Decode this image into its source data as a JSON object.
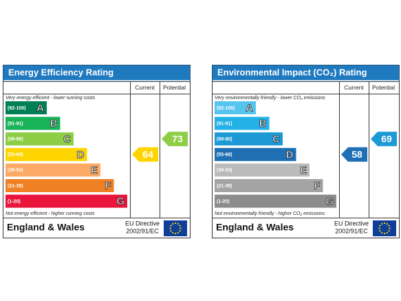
{
  "panels": [
    {
      "title": "Energy Efficiency Rating",
      "columns": [
        "Current",
        "Potential"
      ],
      "top_note": "Very energy efficient - lower running costs",
      "bottom_note": "Not energy efficient - higher running costs",
      "bands": [
        {
          "range": "(92-100)",
          "letter": "A",
          "color": "#008054"
        },
        {
          "range": "(81-91)",
          "letter": "B",
          "color": "#19b459"
        },
        {
          "range": "(69-80)",
          "letter": "C",
          "color": "#8dce46"
        },
        {
          "range": "(55-68)",
          "letter": "D",
          "color": "#ffd500"
        },
        {
          "range": "(39-54)",
          "letter": "E",
          "color": "#fcaa65"
        },
        {
          "range": "(21-38)",
          "letter": "F",
          "color": "#ef8023"
        },
        {
          "range": "(1-20)",
          "letter": "G",
          "color": "#e9153b"
        }
      ],
      "current": 64,
      "potential": 73,
      "footer": {
        "region": "England & Wales",
        "directive": [
          "EU Directive",
          "2002/91/EC"
        ]
      }
    },
    {
      "title": "Environmental Impact (CO₂) Rating",
      "columns": [
        "Current",
        "Potential"
      ],
      "top_note": "Very environmentally friendly - lower CO₂ emissions",
      "bottom_note": "Not environmentally friendly - higher CO₂ emissions",
      "bands": [
        {
          "range": "(92-100)",
          "letter": "A",
          "color": "#55c5f0"
        },
        {
          "range": "(81-91)",
          "letter": "B",
          "color": "#22b2e8"
        },
        {
          "range": "(69-80)",
          "letter": "C",
          "color": "#1d9ad6"
        },
        {
          "range": "(55-68)",
          "letter": "D",
          "color": "#1e6fb4"
        },
        {
          "range": "(39-54)",
          "letter": "E",
          "color": "#bbbbbb"
        },
        {
          "range": "(21-38)",
          "letter": "F",
          "color": "#a4a4a4"
        },
        {
          "range": "(1-20)",
          "letter": "G",
          "color": "#8c8c8c"
        }
      ],
      "current": 58,
      "potential": 69,
      "footer": {
        "region": "England & Wales",
        "directive": [
          "EU Directive",
          "2002/91/EC"
        ]
      }
    }
  ]
}
